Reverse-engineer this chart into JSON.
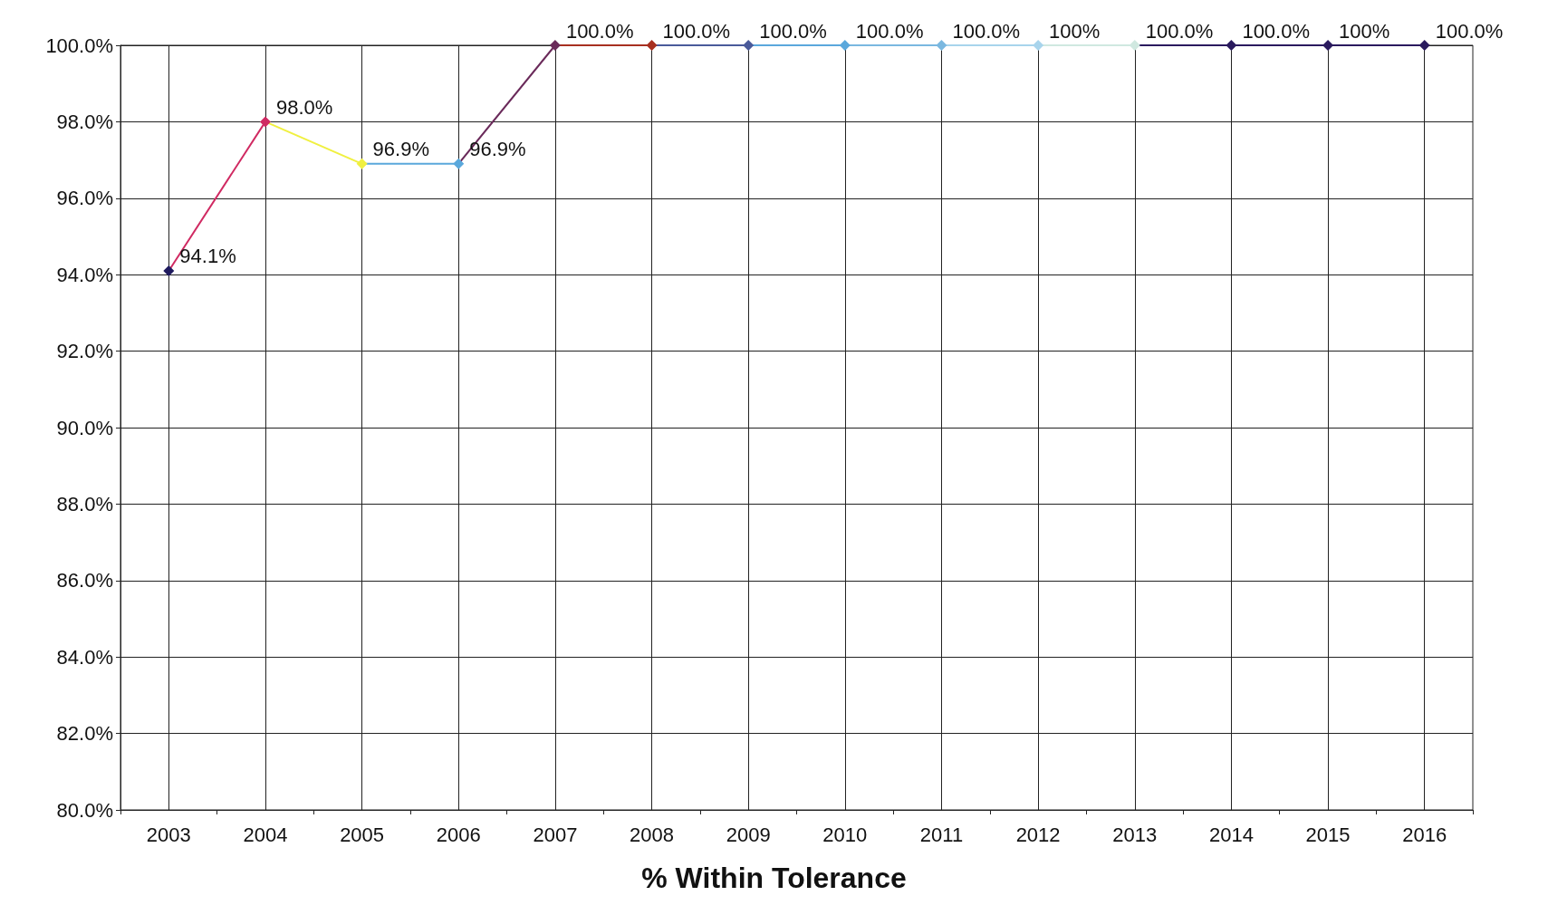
{
  "chart_data": {
    "type": "line",
    "title": "% Within Tolerance",
    "categories": [
      "2003",
      "2004",
      "2005",
      "2006",
      "2007",
      "2008",
      "2009",
      "2010",
      "2011",
      "2012",
      "2013",
      "2014",
      "2015",
      "2016"
    ],
    "series": [
      {
        "colors": [
          "#1f1a5e",
          "#d02a62",
          "#f0f040",
          "#5aa8dc",
          "#6a2a5a",
          "#a83020",
          "#4a5a9a",
          "#5aa8dc",
          "#7ab8e0",
          "#a8d4ec",
          "#d0e8e0",
          "#2a1a5e",
          "#2a1a5e",
          "#2a1a5e"
        ],
        "values": [
          94.1,
          98.0,
          96.9,
          96.9,
          100.0,
          100.0,
          100.0,
          100.0,
          100.0,
          100.0,
          100.0,
          100.0,
          100.0,
          100.0
        ],
        "value_labels": [
          "94.1%",
          "98.0%",
          "96.9%",
          "96.9%",
          "100.0%",
          "100.0%",
          "100.0%",
          "100.0%",
          "100.0%",
          "100%",
          "100.0%",
          "100.0%",
          "100%",
          "100.0%"
        ]
      }
    ],
    "ylim": [
      80,
      100
    ],
    "yticks": [
      {
        "value": 80,
        "label": "80.0%"
      },
      {
        "value": 82,
        "label": "82.0%"
      },
      {
        "value": 84,
        "label": "84.0%"
      },
      {
        "value": 86,
        "label": "86.0%"
      },
      {
        "value": 88,
        "label": "88.0%"
      },
      {
        "value": 90,
        "label": "90.0%"
      },
      {
        "value": 92,
        "label": "92.0%"
      },
      {
        "value": 94,
        "label": "94.0%"
      },
      {
        "value": 96,
        "label": "96.0%"
      },
      {
        "value": 98,
        "label": "98.0%"
      },
      {
        "value": 100,
        "label": "100.0%"
      }
    ],
    "grid": true,
    "marker": "diamond"
  }
}
